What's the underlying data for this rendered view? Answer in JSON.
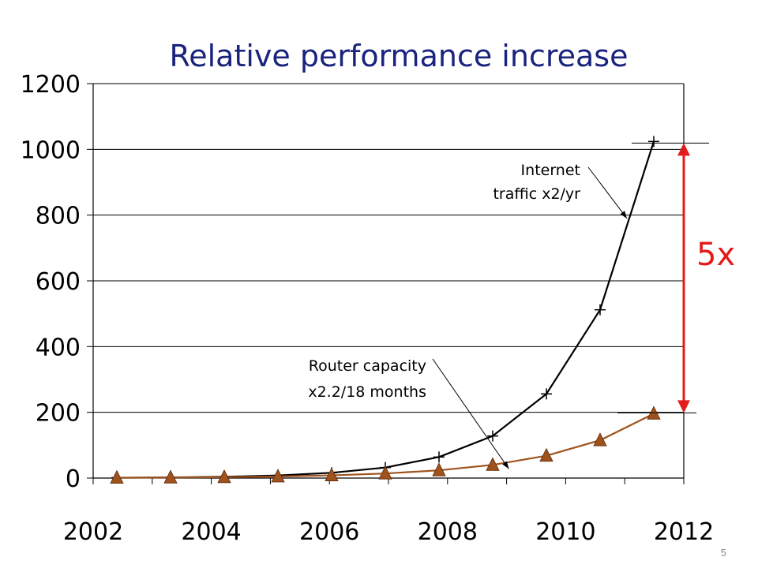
{
  "chart_data": {
    "type": "line",
    "title": "Relative performance increase",
    "xlabel": "",
    "ylabel": "",
    "x": [
      2002,
      2003,
      2004,
      2005,
      2006,
      2007,
      2008,
      2009,
      2010,
      2011,
      2012
    ],
    "x_ticks": [
      "2002",
      "2004",
      "2006",
      "2008",
      "2010",
      "2012"
    ],
    "y_ticks": [
      "0",
      "200",
      "400",
      "600",
      "800",
      "1000",
      "1200"
    ],
    "xlim": [
      2002,
      2012
    ],
    "ylim": [
      0,
      1200
    ],
    "grid": "horizontal",
    "series": [
      {
        "key": "internet",
        "color": "#000000",
        "marker": "plus",
        "values": [
          1,
          2,
          4,
          8,
          16,
          32,
          64,
          128,
          256,
          512,
          1024
        ]
      },
      {
        "key": "router",
        "color": "#a0521d",
        "marker": "triangle",
        "values": [
          1,
          1.7,
          2.9,
          4.8,
          8.2,
          13.9,
          23.6,
          40,
          68,
          115,
          196
        ]
      }
    ],
    "annotations": [
      {
        "key": "internet",
        "lines": [
          "Internet",
          "traffic x2/yr"
        ]
      },
      {
        "key": "router",
        "lines": [
          "Router capacity",
          "x2.2/18 months"
        ]
      }
    ],
    "ratio_label": "5x",
    "ratio_color": "#e31b1b"
  },
  "page_number": "5"
}
